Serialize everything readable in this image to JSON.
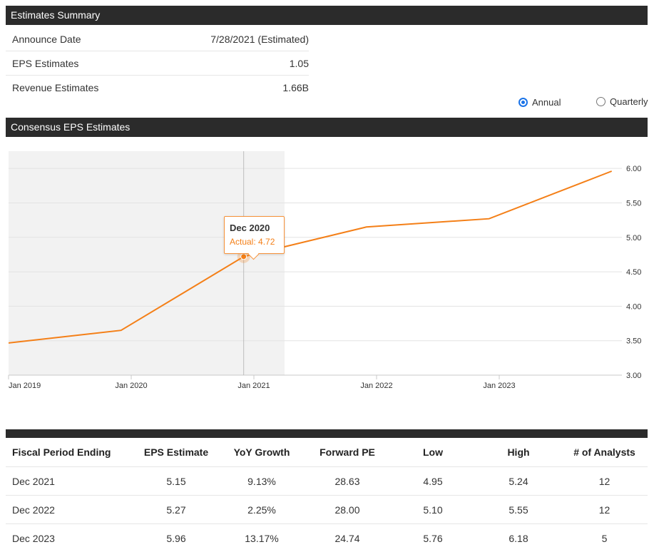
{
  "summary": {
    "title": "Estimates Summary",
    "rows": [
      {
        "label": "Announce Date",
        "value": "7/28/2021 (Estimated)"
      },
      {
        "label": "EPS Estimates",
        "value": "1.05"
      },
      {
        "label": "Revenue Estimates",
        "value": "1.66B"
      }
    ]
  },
  "period_toggle": {
    "annual_label": "Annual",
    "quarterly_label": "Quarterly",
    "selected": "Annual",
    "accent_color": "#1a73e8"
  },
  "chart_section": {
    "title": "Consensus EPS Estimates"
  },
  "chart_data": {
    "type": "line",
    "title": "",
    "xlabel": "",
    "ylabel": "",
    "x_ticks": [
      "Jan 2019",
      "Jan 2020",
      "Jan 2021",
      "Jan 2022",
      "Jan 2023"
    ],
    "y_ticks": [
      "3.00",
      "3.50",
      "4.00",
      "4.50",
      "5.00",
      "5.50",
      "6.00"
    ],
    "ylim": [
      3.0,
      6.25
    ],
    "grid": true,
    "legend": "none",
    "series": [
      {
        "color": "#f47f17",
        "points": [
          {
            "x": "2018-12",
            "y": 3.45
          },
          {
            "x": "2019-12",
            "y": 3.65
          },
          {
            "x": "2020-12",
            "y": 4.72
          },
          {
            "x": "2021-12",
            "y": 5.15
          },
          {
            "x": "2022-12",
            "y": 5.27
          },
          {
            "x": "2023-12",
            "y": 5.96
          }
        ]
      }
    ],
    "actual_region_end": "2021-04",
    "actual_region_color": "#f2f2f2",
    "tooltip": {
      "title": "Dec 2020",
      "label": "Actual",
      "value": "4.72"
    }
  },
  "table": {
    "headers": [
      "Fiscal Period Ending",
      "EPS Estimate",
      "YoY Growth",
      "Forward PE",
      "Low",
      "High",
      "# of Analysts"
    ],
    "rows": [
      [
        "Dec 2021",
        "5.15",
        "9.13%",
        "28.63",
        "4.95",
        "5.24",
        "12"
      ],
      [
        "Dec 2022",
        "5.27",
        "2.25%",
        "28.00",
        "5.10",
        "5.55",
        "12"
      ],
      [
        "Dec 2023",
        "5.96",
        "13.17%",
        "24.74",
        "5.76",
        "6.18",
        "5"
      ]
    ]
  }
}
